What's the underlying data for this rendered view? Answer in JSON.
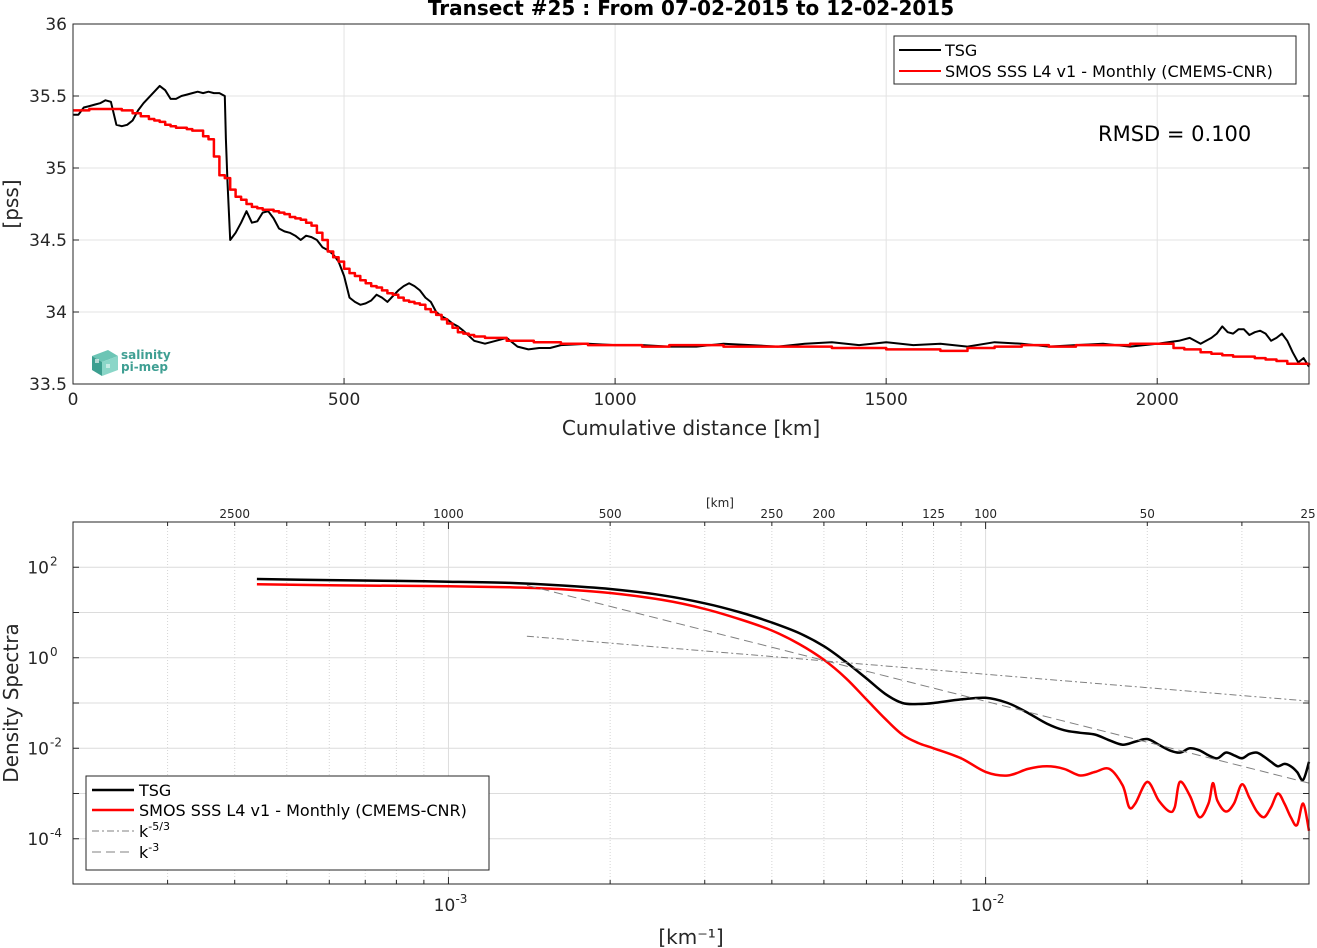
{
  "colors": {
    "tsg": "#000000",
    "smos": "#ff0000",
    "grid": "#e3e3e3",
    "reference": "#808080",
    "axis": "#262626"
  },
  "logo": {
    "line1": "salinity",
    "line2": "pi-mep"
  },
  "chart_data": [
    {
      "type": "line",
      "title": "Transect #25 : From 07-02-2015 to 12-02-2015",
      "xlabel": "Cumulative distance [km]",
      "ylabel": "[pss]",
      "xlim": [
        0,
        2280
      ],
      "ylim": [
        33.5,
        36
      ],
      "xticks": [
        "0",
        "500",
        "1000",
        "1500",
        "2000"
      ],
      "yticks": [
        "33.5",
        "34",
        "34.5",
        "35",
        "35.5",
        "36"
      ],
      "grid": true,
      "legend_position": "top-right",
      "annotation": "RMSD = 0.100",
      "series": [
        {
          "name": "TSG",
          "color": "#000000",
          "step": false,
          "x": [
            0,
            10,
            20,
            30,
            40,
            50,
            60,
            70,
            80,
            90,
            100,
            110,
            120,
            130,
            140,
            150,
            160,
            170,
            180,
            190,
            200,
            210,
            220,
            230,
            240,
            250,
            260,
            270,
            280,
            282,
            285,
            290,
            300,
            310,
            320,
            330,
            340,
            350,
            360,
            370,
            380,
            390,
            400,
            410,
            420,
            430,
            440,
            450,
            460,
            470,
            480,
            490,
            500,
            510,
            520,
            530,
            540,
            550,
            560,
            570,
            580,
            590,
            600,
            610,
            620,
            630,
            640,
            650,
            660,
            670,
            680,
            690,
            700,
            710,
            720,
            740,
            760,
            780,
            800,
            820,
            840,
            860,
            880,
            900,
            950,
            1000,
            1050,
            1100,
            1150,
            1200,
            1250,
            1300,
            1350,
            1400,
            1450,
            1500,
            1550,
            1600,
            1650,
            1700,
            1750,
            1800,
            1850,
            1900,
            1950,
            2000,
            2020,
            2040,
            2060,
            2080,
            2100,
            2110,
            2120,
            2130,
            2140,
            2150,
            2160,
            2170,
            2180,
            2190,
            2200,
            2210,
            2220,
            2230,
            2240,
            2250,
            2260,
            2270,
            2280
          ],
          "y": [
            35.37,
            35.37,
            35.42,
            35.43,
            35.44,
            35.45,
            35.47,
            35.46,
            35.3,
            35.29,
            35.3,
            35.33,
            35.4,
            35.45,
            35.49,
            35.53,
            35.57,
            35.54,
            35.48,
            35.48,
            35.5,
            35.51,
            35.52,
            35.53,
            35.52,
            35.53,
            35.52,
            35.52,
            35.5,
            35.2,
            34.9,
            34.5,
            34.55,
            34.62,
            34.7,
            34.62,
            34.63,
            34.69,
            34.7,
            34.65,
            34.58,
            34.56,
            34.55,
            34.53,
            34.5,
            34.53,
            34.52,
            34.5,
            34.45,
            34.43,
            34.4,
            34.35,
            34.25,
            34.1,
            34.07,
            34.05,
            34.06,
            34.08,
            34.12,
            34.1,
            34.07,
            34.11,
            34.15,
            34.18,
            34.2,
            34.18,
            34.15,
            34.1,
            34.07,
            34.0,
            33.97,
            33.95,
            33.92,
            33.9,
            33.87,
            33.8,
            33.78,
            33.8,
            33.82,
            33.76,
            33.74,
            33.75,
            33.75,
            33.77,
            33.78,
            33.77,
            33.77,
            33.76,
            33.76,
            33.78,
            33.77,
            33.76,
            33.78,
            33.79,
            33.77,
            33.79,
            33.77,
            33.78,
            33.76,
            33.79,
            33.78,
            33.76,
            33.77,
            33.78,
            33.76,
            33.78,
            33.79,
            33.8,
            33.82,
            33.78,
            33.82,
            33.85,
            33.9,
            33.86,
            33.85,
            33.88,
            33.88,
            33.84,
            33.86,
            33.87,
            33.85,
            33.8,
            33.82,
            33.85,
            33.8,
            33.72,
            33.65,
            33.68,
            33.62
          ]
        },
        {
          "name": "SMOS SSS L4 v1 - Monthly (CMEMS-CNR)",
          "color": "#ff0000",
          "step": true,
          "x": [
            0,
            30,
            90,
            110,
            125,
            140,
            150,
            160,
            170,
            180,
            190,
            210,
            220,
            240,
            250,
            260,
            270,
            280,
            290,
            300,
            310,
            320,
            330,
            340,
            350,
            360,
            370,
            380,
            390,
            400,
            410,
            420,
            430,
            440,
            450,
            460,
            470,
            480,
            490,
            500,
            510,
            520,
            530,
            540,
            550,
            560,
            570,
            580,
            590,
            600,
            610,
            620,
            630,
            640,
            650,
            660,
            670,
            680,
            690,
            700,
            710,
            720,
            730,
            740,
            760,
            800,
            850,
            900,
            950,
            1000,
            1050,
            1100,
            1200,
            1300,
            1400,
            1500,
            1550,
            1600,
            1650,
            1700,
            1750,
            1800,
            1850,
            1900,
            1950,
            2000,
            2030,
            2050,
            2080,
            2100,
            2120,
            2140,
            2160,
            2180,
            2200,
            2220,
            2240,
            2260,
            2280
          ],
          "y": [
            35.4,
            35.41,
            35.4,
            35.38,
            35.36,
            35.34,
            35.33,
            35.32,
            35.3,
            35.29,
            35.28,
            35.27,
            35.26,
            35.22,
            35.2,
            35.08,
            34.95,
            34.93,
            34.85,
            34.8,
            34.78,
            34.75,
            34.73,
            34.72,
            34.71,
            34.71,
            34.7,
            34.69,
            34.68,
            34.66,
            34.65,
            34.64,
            34.62,
            34.6,
            34.55,
            34.5,
            34.42,
            34.38,
            34.35,
            34.3,
            34.27,
            34.25,
            34.22,
            34.2,
            34.18,
            34.17,
            34.15,
            34.13,
            34.12,
            34.1,
            34.08,
            34.07,
            34.06,
            34.05,
            34.02,
            34.0,
            33.98,
            33.95,
            33.92,
            33.89,
            33.86,
            33.85,
            33.84,
            33.83,
            33.82,
            33.8,
            33.79,
            33.78,
            33.77,
            33.77,
            33.76,
            33.77,
            33.76,
            33.76,
            33.75,
            33.74,
            33.74,
            33.73,
            33.75,
            33.76,
            33.77,
            33.76,
            33.77,
            33.77,
            33.78,
            33.78,
            33.75,
            33.74,
            33.72,
            33.71,
            33.7,
            33.69,
            33.69,
            33.68,
            33.67,
            33.66,
            33.64,
            33.64,
            33.63
          ]
        }
      ]
    },
    {
      "type": "line",
      "xscale": "log",
      "yscale": "log",
      "xlabel": "[km⁻¹]",
      "ylabel": "Density Spectra",
      "top_xlabel": "[km]",
      "xlim": [
        0.0002,
        0.04
      ],
      "ylim": [
        1e-05,
        1000
      ],
      "xticks": [
        {
          "value": 0.001,
          "mantissa": "10",
          "exp": "-3"
        },
        {
          "value": 0.01,
          "mantissa": "10",
          "exp": "-2"
        }
      ],
      "yticks": [
        {
          "value": 0.0001,
          "mantissa": "10",
          "exp": "-4"
        },
        {
          "value": 0.01,
          "mantissa": "10",
          "exp": "-2"
        },
        {
          "value": 1,
          "mantissa": "10",
          "exp": "0"
        },
        {
          "value": 100,
          "mantissa": "10",
          "exp": "2"
        }
      ],
      "top_xticks": [
        {
          "km": 2500,
          "label": "2500"
        },
        {
          "km": 1000,
          "label": "1000"
        },
        {
          "km": 500,
          "label": "500"
        },
        {
          "km": 250,
          "label": "250"
        },
        {
          "km": 200,
          "label": "200"
        },
        {
          "km": 125,
          "label": "125"
        },
        {
          "km": 100,
          "label": "100"
        },
        {
          "km": 50,
          "label": "50"
        },
        {
          "km": 25,
          "label": "25"
        }
      ],
      "grid": true,
      "legend_position": "bottom-left",
      "series": [
        {
          "name": "TSG",
          "color": "#000000",
          "dash": "",
          "x": [
            0.00044,
            0.0006,
            0.0008,
            0.001,
            0.0013,
            0.0016,
            0.002,
            0.0025,
            0.003,
            0.0035,
            0.004,
            0.0045,
            0.005,
            0.0055,
            0.006,
            0.0065,
            0.007,
            0.0075,
            0.008,
            0.009,
            0.01,
            0.011,
            0.012,
            0.013,
            0.014,
            0.015,
            0.016,
            0.017,
            0.018,
            0.019,
            0.02,
            0.021,
            0.022,
            0.023,
            0.024,
            0.025,
            0.026,
            0.027,
            0.028,
            0.029,
            0.03,
            0.031,
            0.032,
            0.033,
            0.034,
            0.035,
            0.036,
            0.037,
            0.038,
            0.039,
            0.04
          ],
          "y": [
            55,
            52,
            50,
            48,
            45,
            40,
            33,
            24,
            16,
            10,
            6,
            3.5,
            1.8,
            0.8,
            0.35,
            0.16,
            0.1,
            0.095,
            0.1,
            0.12,
            0.13,
            0.1,
            0.06,
            0.035,
            0.025,
            0.022,
            0.02,
            0.015,
            0.012,
            0.014,
            0.016,
            0.012,
            0.009,
            0.008,
            0.01,
            0.009,
            0.007,
            0.006,
            0.008,
            0.007,
            0.006,
            0.0075,
            0.008,
            0.0065,
            0.005,
            0.004,
            0.0045,
            0.004,
            0.003,
            0.002,
            0.005
          ]
        },
        {
          "name": "SMOS SSS L4 v1 - Monthly (CMEMS-CNR)",
          "color": "#ff0000",
          "dash": "",
          "x": [
            0.00044,
            0.0006,
            0.0008,
            0.001,
            0.0013,
            0.0016,
            0.002,
            0.0025,
            0.003,
            0.0035,
            0.004,
            0.0045,
            0.005,
            0.0055,
            0.006,
            0.0065,
            0.007,
            0.0075,
            0.008,
            0.009,
            0.01,
            0.011,
            0.012,
            0.013,
            0.014,
            0.015,
            0.016,
            0.017,
            0.018,
            0.0185,
            0.019,
            0.02,
            0.021,
            0.022,
            0.0225,
            0.023,
            0.024,
            0.025,
            0.026,
            0.0265,
            0.027,
            0.028,
            0.029,
            0.03,
            0.031,
            0.032,
            0.033,
            0.034,
            0.035,
            0.036,
            0.037,
            0.038,
            0.039,
            0.04
          ],
          "y": [
            42,
            40,
            39,
            38,
            36,
            33,
            27,
            19,
            12,
            7,
            4,
            2,
            0.9,
            0.35,
            0.12,
            0.045,
            0.02,
            0.013,
            0.01,
            0.006,
            0.003,
            0.0025,
            0.0035,
            0.004,
            0.0035,
            0.0025,
            0.003,
            0.0035,
            0.0015,
            0.0005,
            0.0006,
            0.0018,
            0.0007,
            0.0004,
            0.0005,
            0.0018,
            0.0009,
            0.0003,
            0.0006,
            0.0017,
            0.0007,
            0.0004,
            0.0006,
            0.0016,
            0.0008,
            0.0004,
            0.0003,
            0.0005,
            0.001,
            0.0006,
            0.0003,
            0.0002,
            0.0006,
            0.00015
          ]
        },
        {
          "name": "k",
          "name_exp": "-5/3",
          "color": "#808080",
          "dash": "7 3 2 3",
          "x": [
            0.0014,
            0.04
          ],
          "y": [
            3.0,
            0.11
          ]
        },
        {
          "name": "k",
          "name_exp": "-3",
          "color": "#808080",
          "dash": "9 5",
          "x": [
            0.0014,
            0.04
          ],
          "y": [
            40,
            0.0017
          ]
        }
      ]
    }
  ]
}
